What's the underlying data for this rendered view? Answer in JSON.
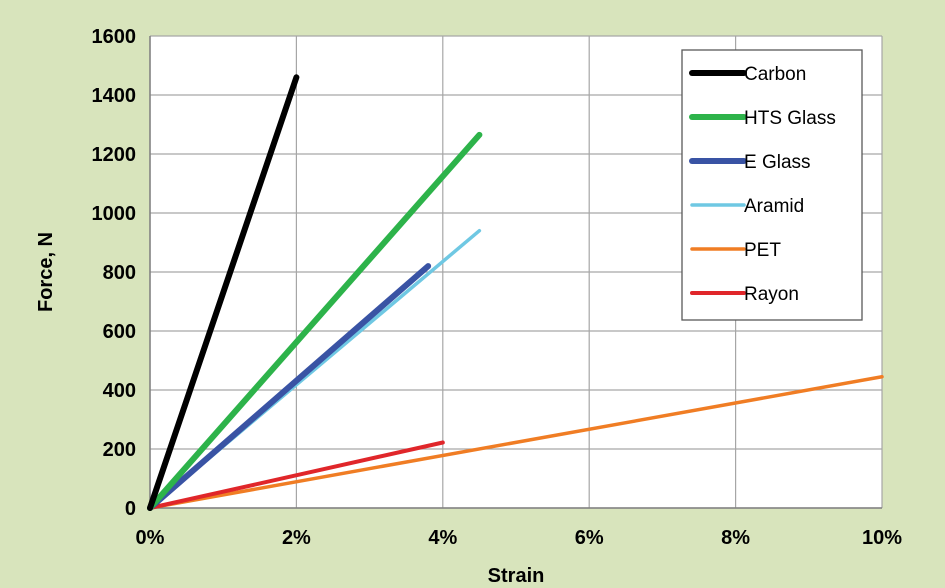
{
  "chart_data": {
    "type": "line",
    "title": "",
    "xlabel": "Strain",
    "ylabel": "Force, N",
    "xlim": [
      0,
      10
    ],
    "ylim": [
      0,
      1600
    ],
    "x_ticks": [
      0,
      2,
      4,
      6,
      8,
      10
    ],
    "x_tick_labels": [
      "0%",
      "2%",
      "4%",
      "6%",
      "8%",
      "10%"
    ],
    "y_ticks": [
      0,
      200,
      400,
      600,
      800,
      1000,
      1200,
      1400,
      1600
    ],
    "y_tick_labels": [
      "0",
      "200",
      "400",
      "600",
      "800",
      "1000",
      "1200",
      "1400",
      "1600"
    ],
    "grid": true,
    "legend_position": "top-right",
    "background_color": "#d8e4bc",
    "plot_background_color": "#ffffff",
    "series": [
      {
        "name": "Carbon",
        "color": "#000000",
        "x": [
          0,
          2.0
        ],
        "y": [
          0,
          1460
        ]
      },
      {
        "name": "HTS Glass",
        "color": "#2db34a",
        "x": [
          0,
          4.5
        ],
        "y": [
          0,
          1265
        ]
      },
      {
        "name": "E Glass",
        "color": "#3953a4",
        "x": [
          0,
          3.8
        ],
        "y": [
          0,
          820
        ]
      },
      {
        "name": "Aramid",
        "color": "#6fc8e3",
        "x": [
          0,
          4.5
        ],
        "y": [
          0,
          940
        ]
      },
      {
        "name": "PET",
        "color": "#f07d24",
        "x": [
          0,
          10
        ],
        "y": [
          0,
          445
        ]
      },
      {
        "name": "Rayon",
        "color": "#e0262a",
        "x": [
          0,
          4.0
        ],
        "y": [
          0,
          222
        ]
      }
    ]
  }
}
